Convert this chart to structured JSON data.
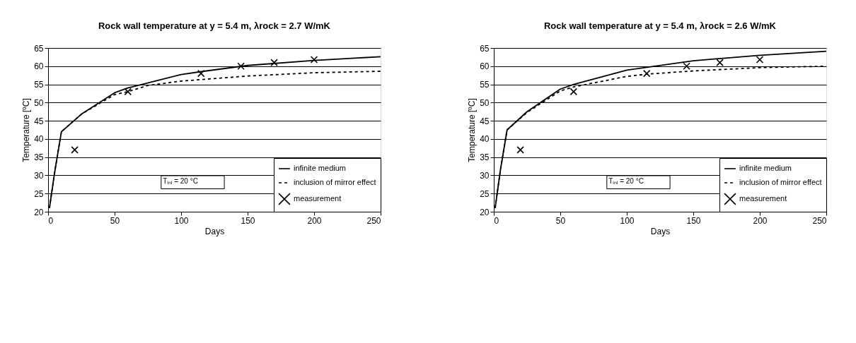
{
  "chart_data": [
    {
      "type": "line",
      "title": "Rock wall temperature at y = 5.4 m, λrock = 2.7 W/mK",
      "xlabel": "Days",
      "ylabel": "Temperature [ºC]",
      "xlim": [
        0,
        250
      ],
      "xticks": [
        0,
        50,
        100,
        150,
        200,
        250
      ],
      "ylim": [
        20,
        65
      ],
      "yticks": [
        20,
        25,
        30,
        35,
        40,
        45,
        50,
        55,
        60,
        65
      ],
      "grid": "y",
      "legend": "bottom right",
      "annotations": [
        "Tᵢₙᵢ = 20 °C"
      ],
      "series": [
        {
          "name": "infinite medium",
          "type": "line",
          "line_style": "solid",
          "color": "#000000",
          "x": [
            1,
            5,
            10,
            25,
            50,
            60,
            100,
            115,
            150,
            200,
            250
          ],
          "values": [
            21,
            31,
            42,
            46.8,
            52.7,
            54,
            57.7,
            58.5,
            60.2,
            61.6,
            62.6
          ]
        },
        {
          "name": "inclusion of mirror effect",
          "type": "line",
          "line_style": "dashed",
          "color": "#000000",
          "x": [
            1,
            5,
            10,
            25,
            50,
            60,
            75,
            100,
            150,
            200,
            250
          ],
          "values": [
            21,
            31,
            42,
            46.8,
            52.2,
            53,
            54.7,
            55.9,
            57.3,
            58.2,
            58.6
          ]
        },
        {
          "name": "measurement",
          "type": "scatter",
          "marker": "cross",
          "color": "#000000",
          "x": [
            20,
            60,
            115,
            145,
            170,
            200
          ],
          "values": [
            37,
            53,
            58,
            60,
            61,
            61.8
          ]
        }
      ]
    },
    {
      "type": "line",
      "title": "Rock wall temperature at y = 5.4 m, λrock = 2.6 W/mK",
      "xlabel": "Days",
      "ylabel": "Temperature [ºC]",
      "xlim": [
        0,
        250
      ],
      "xticks": [
        0,
        50,
        100,
        150,
        200,
        250
      ],
      "ylim": [
        20,
        65
      ],
      "yticks": [
        20,
        25,
        30,
        35,
        40,
        45,
        50,
        55,
        60,
        65
      ],
      "grid": "y",
      "legend": "bottom right",
      "annotations": [
        "Tᵢₙᵢ = 20 °C"
      ],
      "series": [
        {
          "name": "infinite medium",
          "type": "line",
          "line_style": "solid",
          "color": "#000000",
          "x": [
            1,
            5,
            10,
            25,
            50,
            60,
            100,
            150,
            200,
            250
          ],
          "values": [
            21,
            31.5,
            42.5,
            47.5,
            53.7,
            55,
            58.9,
            61.5,
            63,
            64.1
          ]
        },
        {
          "name": "inclusion of mirror effect",
          "type": "line",
          "line_style": "dashed",
          "color": "#000000",
          "x": [
            1,
            5,
            10,
            25,
            50,
            60,
            100,
            115,
            150,
            200,
            250
          ],
          "values": [
            21,
            31.5,
            42.5,
            47.3,
            53.2,
            54.3,
            57.2,
            57.8,
            58.7,
            59.6,
            60
          ]
        },
        {
          "name": "measurement",
          "type": "scatter",
          "marker": "cross",
          "color": "#000000",
          "x": [
            20,
            60,
            115,
            145,
            170,
            200
          ],
          "values": [
            37,
            53,
            58,
            60,
            61,
            61.8
          ]
        }
      ]
    }
  ]
}
